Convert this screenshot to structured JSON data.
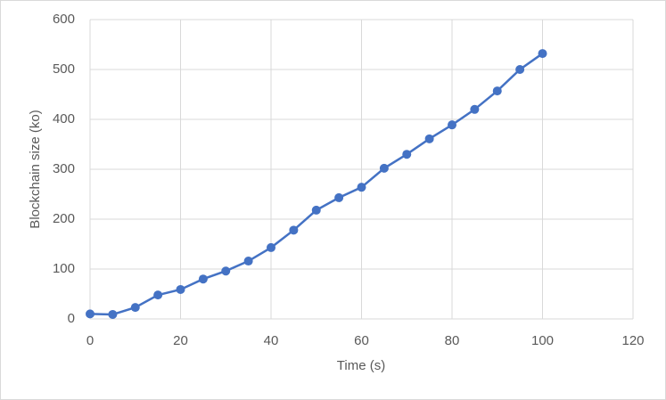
{
  "chart_data": {
    "type": "line",
    "x_label": "Time (s)",
    "y_label": "Blockchain size (ko)",
    "x": [
      0,
      5,
      10,
      15,
      20,
      25,
      30,
      35,
      40,
      45,
      50,
      55,
      60,
      65,
      70,
      75,
      80,
      85,
      90,
      95,
      100
    ],
    "values": [
      10,
      9,
      23,
      48,
      59,
      80,
      96,
      116,
      143,
      178,
      218,
      243,
      264,
      302,
      330,
      361,
      389,
      420,
      457,
      500,
      532
    ],
    "color": "#4472c4",
    "xlim": [
      0,
      120
    ],
    "xticks": [
      0,
      20,
      40,
      60,
      80,
      100,
      120
    ],
    "ylim": [
      0,
      600
    ],
    "yticks": [
      0,
      100,
      200,
      300,
      400,
      500,
      600
    ],
    "grid": true,
    "markers": true
  }
}
